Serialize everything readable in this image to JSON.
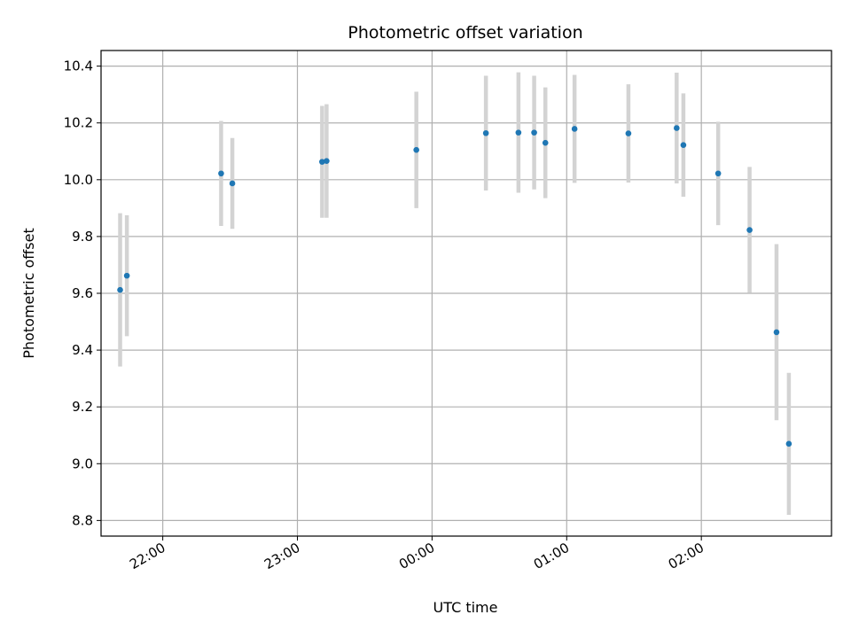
{
  "chart_data": {
    "type": "scatter",
    "title": "Photometric offset variation",
    "xlabel": "UTC time",
    "ylabel": "Photometric offset",
    "grid": true,
    "xlim": [
      "21:32:30",
      "02:58:00"
    ],
    "ylim": [
      8.745,
      10.455
    ],
    "x_ticks": [
      "22:00",
      "23:00",
      "00:00",
      "01:00",
      "02:00"
    ],
    "y_ticks": [
      "8.8",
      "9.0",
      "9.2",
      "9.4",
      "9.6",
      "9.8",
      "10.0",
      "10.2",
      "10.4"
    ],
    "colors": {
      "marker": "#1f77b4",
      "errorbar": "#d3d3d3",
      "grid": "#b0b0b0"
    },
    "series": [
      {
        "points": [
          {
            "t": "21:41:00",
            "y": 9.612,
            "err": 0.27
          },
          {
            "t": "21:44:00",
            "y": 9.662,
            "err": 0.213
          },
          {
            "t": "22:26:00",
            "y": 10.022,
            "err": 0.185
          },
          {
            "t": "22:31:00",
            "y": 9.987,
            "err": 0.16
          },
          {
            "t": "23:11:00",
            "y": 10.063,
            "err": 0.197
          },
          {
            "t": "23:13:00",
            "y": 10.066,
            "err": 0.2
          },
          {
            "t": "23:53:00",
            "y": 10.105,
            "err": 0.205
          },
          {
            "t": "00:24:00",
            "y": 10.164,
            "err": 0.202
          },
          {
            "t": "00:38:30",
            "y": 10.166,
            "err": 0.212
          },
          {
            "t": "00:45:30",
            "y": 10.166,
            "err": 0.2
          },
          {
            "t": "00:50:30",
            "y": 10.13,
            "err": 0.195
          },
          {
            "t": "01:03:30",
            "y": 10.179,
            "err": 0.19
          },
          {
            "t": "01:27:30",
            "y": 10.163,
            "err": 0.173
          },
          {
            "t": "01:49:00",
            "y": 10.182,
            "err": 0.195
          },
          {
            "t": "01:52:00",
            "y": 10.122,
            "err": 0.182
          },
          {
            "t": "02:07:30",
            "y": 10.022,
            "err": 0.182
          },
          {
            "t": "02:21:30",
            "y": 9.823,
            "err": 0.222
          },
          {
            "t": "02:33:30",
            "y": 9.463,
            "err": 0.31
          },
          {
            "t": "02:39:00",
            "y": 9.07,
            "err": 0.25
          }
        ]
      }
    ]
  }
}
